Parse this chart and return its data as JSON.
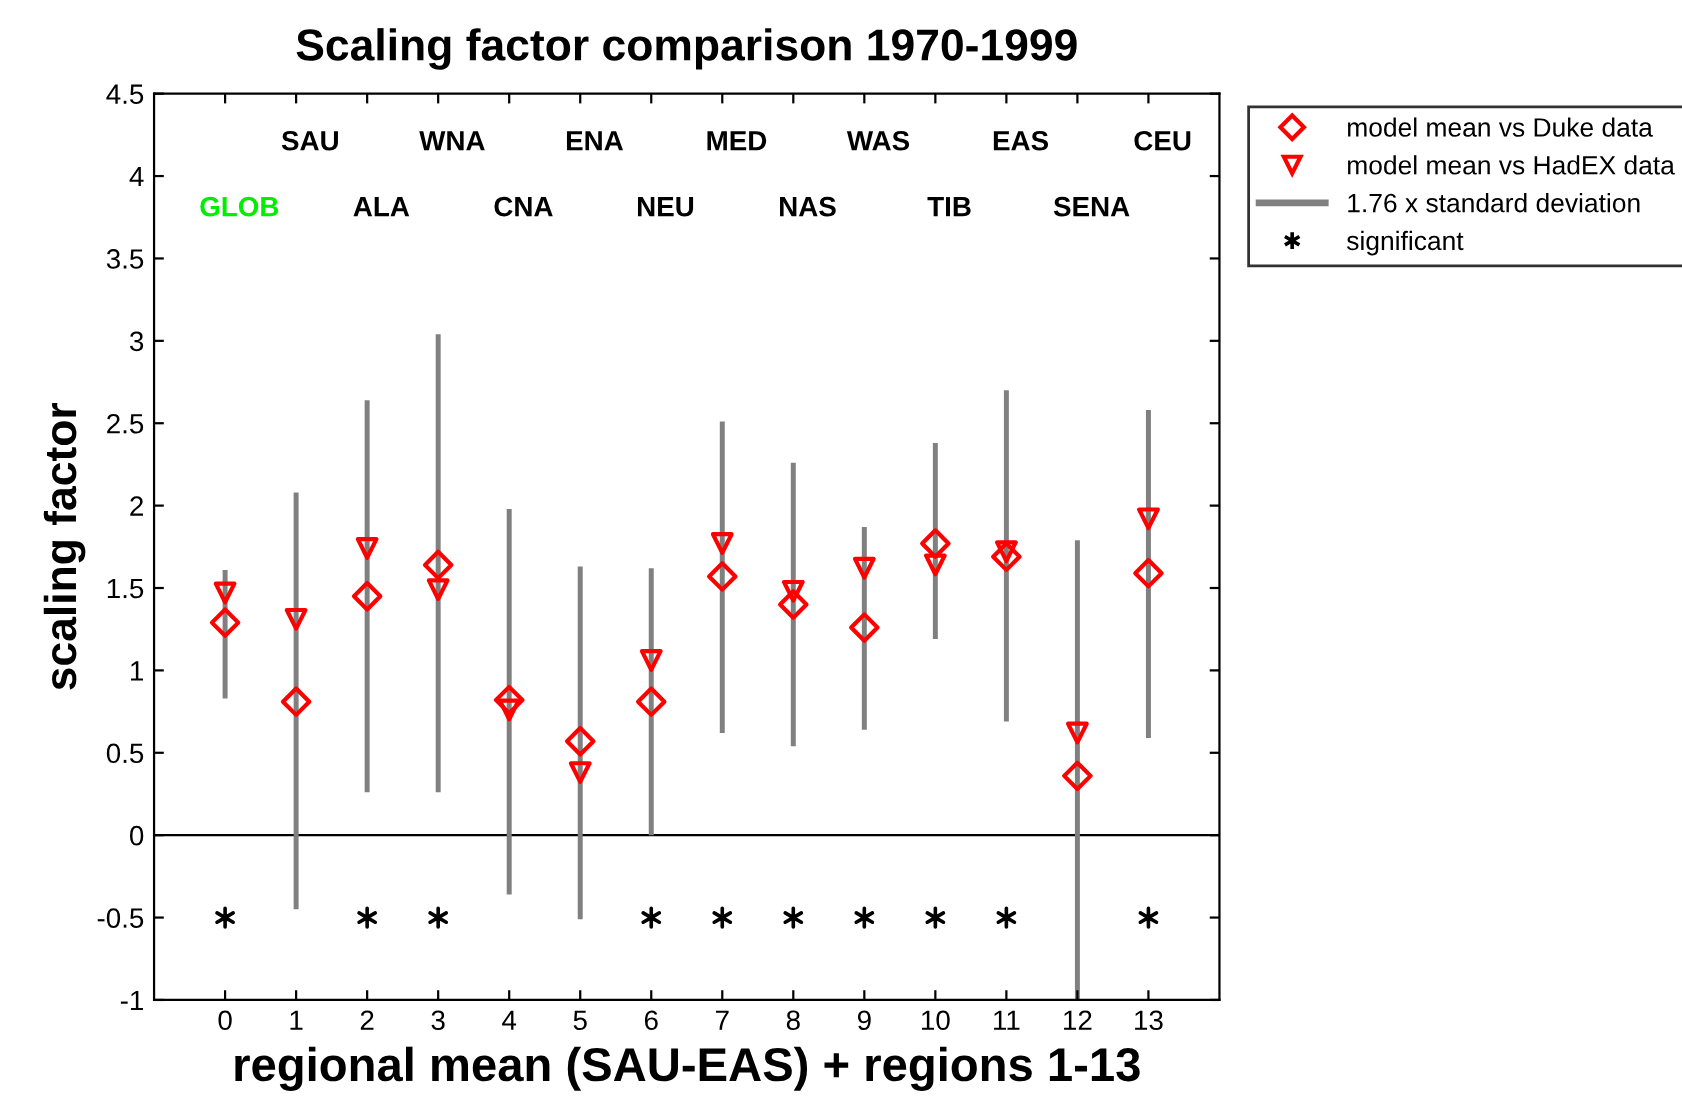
{
  "chart_data": {
    "type": "scatter",
    "title": "Scaling factor comparison 1970-1999",
    "xlabel": "regional mean (SAU-EAS) + regions 1-13",
    "ylabel": "scaling factor",
    "x": [
      0,
      1,
      2,
      3,
      4,
      5,
      6,
      7,
      8,
      9,
      10,
      11,
      12,
      13
    ],
    "series": [
      {
        "name": "1.76 x standard deviation",
        "type": "bar",
        "color": "#808080",
        "base": [
          0.83,
          -0.45,
          0.26,
          0.26,
          -0.36,
          -0.51,
          0.0,
          0.62,
          0.54,
          0.64,
          1.19,
          0.69,
          -1.0,
          0.59
        ],
        "values": [
          0.78,
          2.53,
          2.38,
          2.78,
          2.34,
          2.14,
          1.62,
          1.89,
          1.72,
          1.23,
          1.19,
          2.01,
          2.79,
          1.99
        ]
      },
      {
        "name": "model mean vs Duke data",
        "marker": "diamond",
        "color": "#ff0000",
        "values": [
          1.29,
          0.81,
          1.45,
          1.64,
          0.82,
          0.57,
          0.81,
          1.57,
          1.4,
          1.26,
          1.77,
          1.69,
          0.36,
          1.59
        ]
      },
      {
        "name": "model mean vs HadEX data",
        "marker": "triangle",
        "color": "#ff0000",
        "values": [
          1.47,
          1.31,
          1.74,
          1.49,
          0.76,
          0.38,
          1.06,
          1.77,
          1.48,
          1.62,
          1.64,
          1.72,
          0.62,
          1.92
        ]
      },
      {
        "name": "significant",
        "marker": "cross",
        "color": "#000000",
        "values": [
          -0.5,
          null,
          -0.5,
          -0.5,
          null,
          null,
          -0.5,
          -0.5,
          -0.5,
          -0.5,
          -0.5,
          -0.5,
          null,
          -0.5
        ]
      }
    ],
    "ref_lines": [
      {
        "axis": "y",
        "value": 0,
        "color": "#000000"
      }
    ],
    "annotations": [
      "GLOB",
      "SAU",
      "ALA",
      "WNA",
      "CNA",
      "ENA",
      "NEU",
      "MED",
      "NAS",
      "WAS",
      "TIB",
      "EAS",
      "SENA",
      "CEU"
    ],
    "xlim": [
      -1,
      14
    ],
    "xticks": [
      0,
      1,
      2,
      3,
      4,
      5,
      6,
      7,
      8,
      9,
      10,
      11,
      12,
      13
    ],
    "ylim": [
      -1,
      4.5
    ],
    "yticks": [
      -1,
      -0.5,
      0,
      0.5,
      1,
      1.5,
      2,
      2.5,
      3,
      3.5,
      4,
      4.5
    ],
    "grid": false,
    "legend": "top right"
  }
}
